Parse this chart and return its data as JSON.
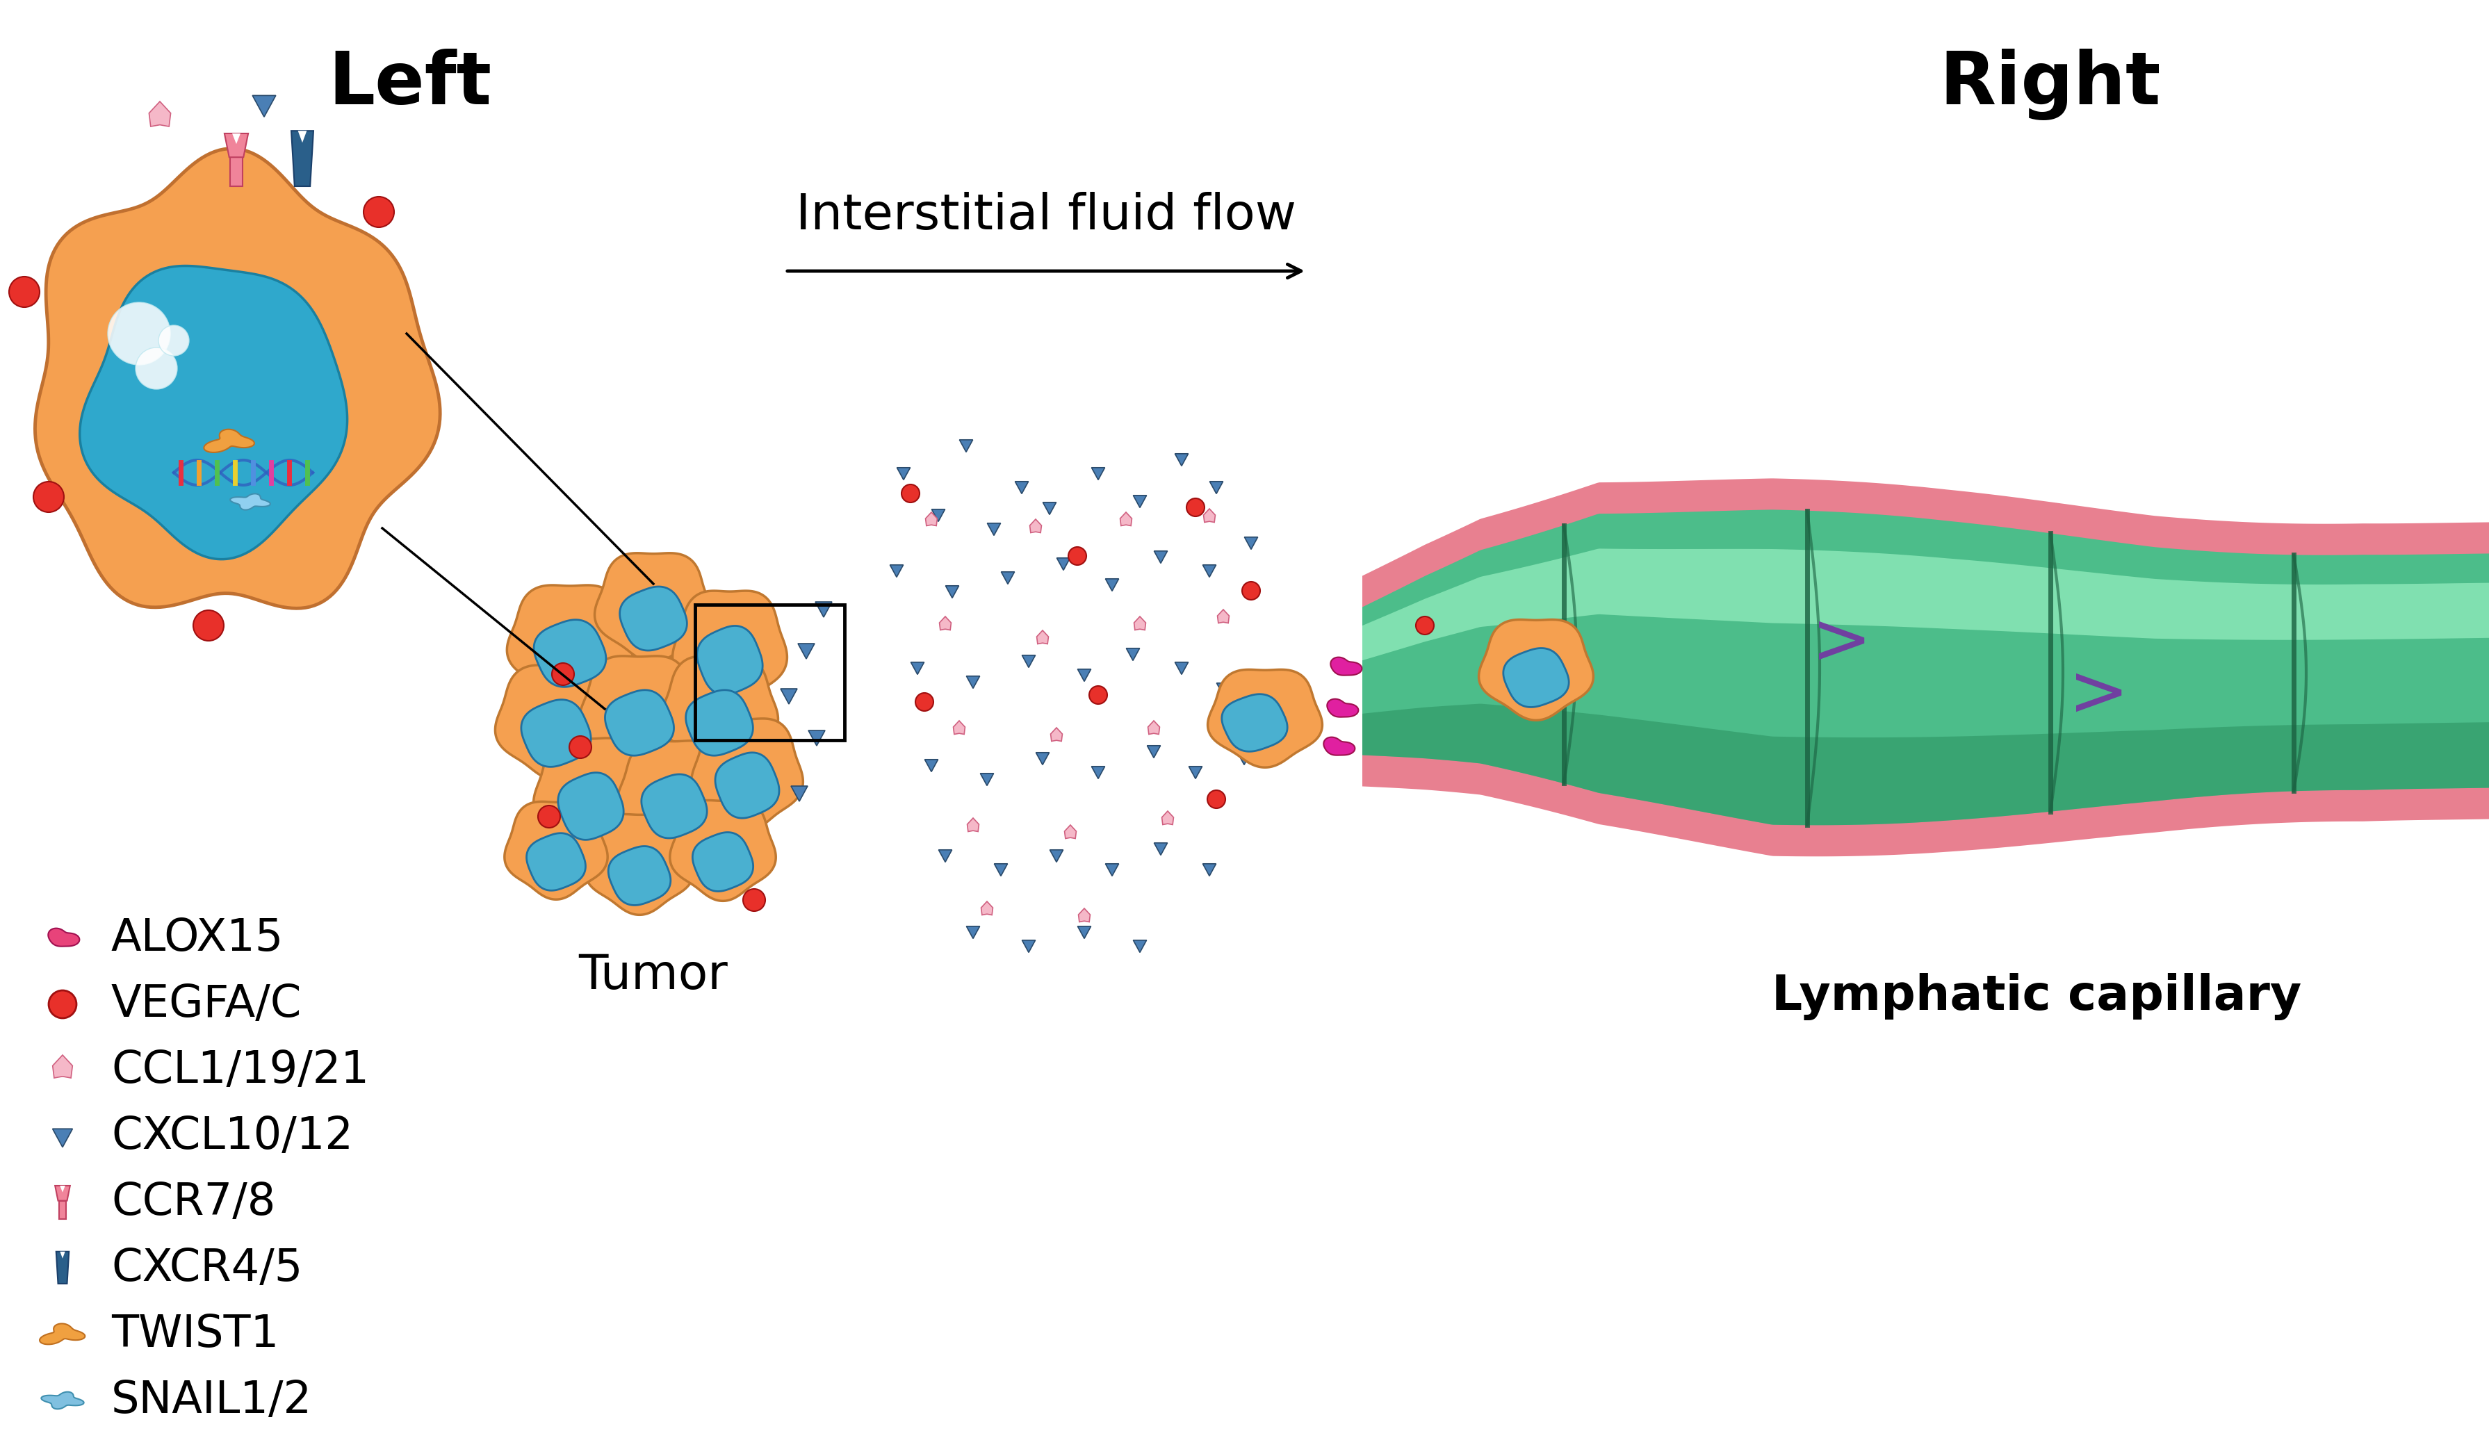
{
  "title_left": "Left",
  "title_right": "Right",
  "arrow_label": "Interstitial fluid flow",
  "tumor_label": "Tumor",
  "capillary_label": "Lymphatic capillary",
  "legend_items": [
    {
      "label": "ALOX15",
      "color": "#e8437a",
      "shape": "kidney"
    },
    {
      "label": "VEGFA/C",
      "color": "#e8302a",
      "shape": "circle"
    },
    {
      "label": "CCL1/19/21",
      "color": "#f0a0b0",
      "shape": "gem"
    },
    {
      "label": "CXCL10/12",
      "color": "#4a7fb5",
      "shape": "triangle"
    },
    {
      "label": "CCR7/8",
      "color": "#f0849a",
      "shape": "pin"
    },
    {
      "label": "CXCR4/5",
      "color": "#2a5f8a",
      "shape": "receptor"
    },
    {
      "label": "TWIST1",
      "color": "#f0a040",
      "shape": "blob"
    },
    {
      "label": "SNAIL1/2",
      "color": "#80c0e0",
      "shape": "crown"
    }
  ],
  "bg_color": "#ffffff",
  "tumor_cell_color": "#f5a050",
  "tumor_nucleus_color": "#4ab0d0",
  "capillary_outer_color": "#e88090",
  "capillary_inner_color": "#50c090",
  "capillary_seg_color": "#38a070"
}
